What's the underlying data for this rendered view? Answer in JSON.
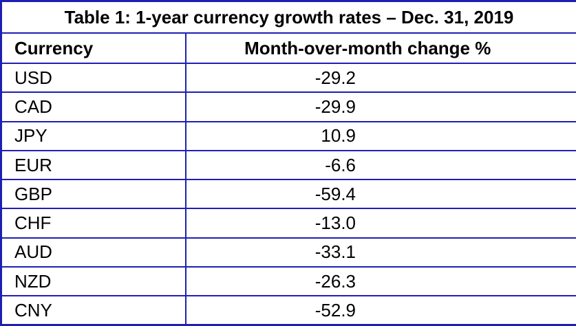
{
  "table": {
    "title": "Table 1: 1-year currency growth rates – Dec. 31, 2019",
    "columns": {
      "currency": "Currency",
      "change": "Month-over-month change %"
    },
    "rows": [
      {
        "currency": "USD",
        "change": "-29.2"
      },
      {
        "currency": "CAD",
        "change": "-29.9"
      },
      {
        "currency": "JPY",
        "change": "10.9"
      },
      {
        "currency": "EUR",
        "change": "-6.6"
      },
      {
        "currency": "GBP",
        "change": "-59.4"
      },
      {
        "currency": "CHF",
        "change": "-13.0"
      },
      {
        "currency": "AUD",
        "change": "-33.1"
      },
      {
        "currency": "NZD",
        "change": "-26.3"
      },
      {
        "currency": "CNY",
        "change": "-52.9"
      }
    ]
  },
  "colors": {
    "border_blue": "#1E1EB4",
    "text": "#000000",
    "background": "#FFFFFF"
  },
  "chart_data": {
    "type": "table",
    "title": "Table 1: 1-year currency growth rates – Dec. 31, 2019",
    "columns": [
      "Currency",
      "Month-over-month change %"
    ],
    "categories": [
      "USD",
      "CAD",
      "JPY",
      "EUR",
      "GBP",
      "CHF",
      "AUD",
      "NZD",
      "CNY"
    ],
    "values": [
      -29.2,
      -29.9,
      10.9,
      -6.6,
      -59.4,
      -13.0,
      -33.1,
      -26.3,
      -52.9
    ]
  }
}
